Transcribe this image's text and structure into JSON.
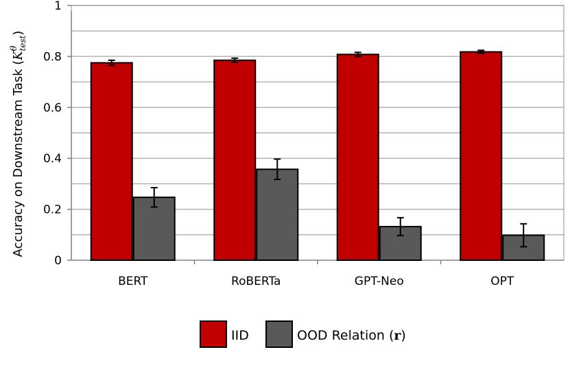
{
  "chart_data": {
    "type": "bar",
    "categories": [
      "BERT",
      "RoBERTa",
      "GPT-Neo",
      "OPT"
    ],
    "series": [
      {
        "name": "IID",
        "color": "#c00000",
        "values": [
          0.775,
          0.785,
          0.808,
          0.818
        ],
        "errors": [
          0.01,
          0.008,
          0.008,
          0.006
        ]
      },
      {
        "name": "OOD Relation (r)",
        "color": "#595959",
        "values": [
          0.247,
          0.357,
          0.132,
          0.098
        ],
        "errors": [
          0.038,
          0.04,
          0.035,
          0.045
        ]
      }
    ],
    "ylim": [
      0,
      1
    ],
    "yticks": [
      0,
      0.2,
      0.4,
      0.6,
      0.8,
      1
    ],
    "ytick_labels": [
      "0",
      "0.2",
      "0.4",
      "0.6",
      "0.8",
      "1"
    ],
    "ylabel_prefix": "Accuracy on Downstream Task (",
    "ylabel_symbol": "K",
    "ylabel_sup": "θ",
    "ylabel_sub": "test",
    "ylabel_suffix": ")",
    "legend": {
      "position": "bottom-center",
      "iid_label": "IID",
      "ood_prefix": "OOD Relation (",
      "ood_symbol": "r",
      "ood_suffix": ")"
    },
    "grid": true
  }
}
